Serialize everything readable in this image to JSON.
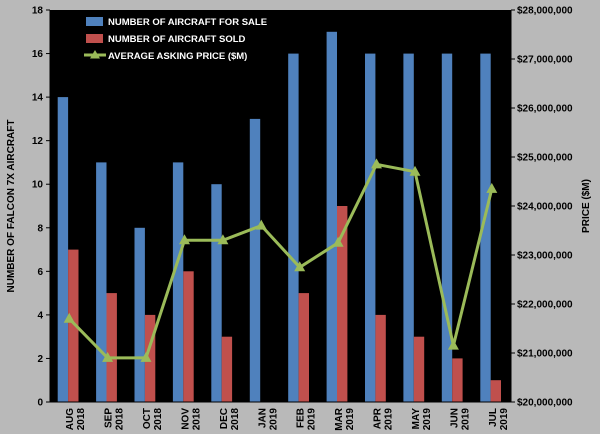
{
  "chart_data": {
    "type": "bar",
    "categories": [
      [
        "AUG",
        "2018"
      ],
      [
        "SEP",
        "2018"
      ],
      [
        "OCT",
        "2018"
      ],
      [
        "NOV",
        "2018"
      ],
      [
        "DEC",
        "2018"
      ],
      [
        "JAN",
        "2019"
      ],
      [
        "FEB",
        "2019"
      ],
      [
        "MAR",
        "2019"
      ],
      [
        "APR",
        "2019"
      ],
      [
        "MAY",
        "2019"
      ],
      [
        "JUN",
        "2019"
      ],
      [
        "JUL",
        "2019"
      ]
    ],
    "series": [
      {
        "name": "NUMBER OF AIRCRAFT FOR SALE",
        "type": "bar",
        "axis": "left",
        "color": "#4f81bd",
        "values": [
          14,
          11,
          8,
          11,
          10,
          13,
          16,
          17,
          16,
          16,
          16,
          16
        ]
      },
      {
        "name": "NUMBER OF AIRCRAFT SOLD",
        "type": "bar",
        "axis": "left",
        "color": "#c0504d",
        "values": [
          7,
          5,
          4,
          6,
          3,
          0,
          5,
          9,
          4,
          3,
          2,
          1
        ]
      },
      {
        "name": "AVERAGE ASKING PRICE ($M)",
        "type": "line",
        "axis": "right",
        "color": "#9bbb59",
        "values": [
          21700000,
          20900000,
          20900000,
          23300000,
          23300000,
          23600000,
          22750000,
          23250000,
          24850000,
          24700000,
          21150000,
          24350000
        ]
      }
    ],
    "ylabel": "NUMBER OF FALCON 7X AIRCRAFT",
    "y2label": "PRICE ($M)",
    "ylim": [
      0,
      18
    ],
    "yticks": [
      0,
      2,
      4,
      6,
      8,
      10,
      12,
      14,
      16,
      18
    ],
    "y2lim": [
      20000000,
      28000000
    ],
    "y2ticks": [
      {
        "value": 20000000,
        "label": "$20,000,000"
      },
      {
        "value": 21000000,
        "label": "$21,000,000"
      },
      {
        "value": 22000000,
        "label": "$22,000,000"
      },
      {
        "value": 23000000,
        "label": "$23,000,000"
      },
      {
        "value": 24000000,
        "label": "$24,000,000"
      },
      {
        "value": 25000000,
        "label": "$25,000,000"
      },
      {
        "value": 26000000,
        "label": "$26,000,000"
      },
      {
        "value": 27000000,
        "label": "$27,000,000"
      },
      {
        "value": 28000000,
        "label": "$28,000,000"
      }
    ],
    "legend_position": "top-left",
    "plot_background": "#000000",
    "grid": false
  }
}
